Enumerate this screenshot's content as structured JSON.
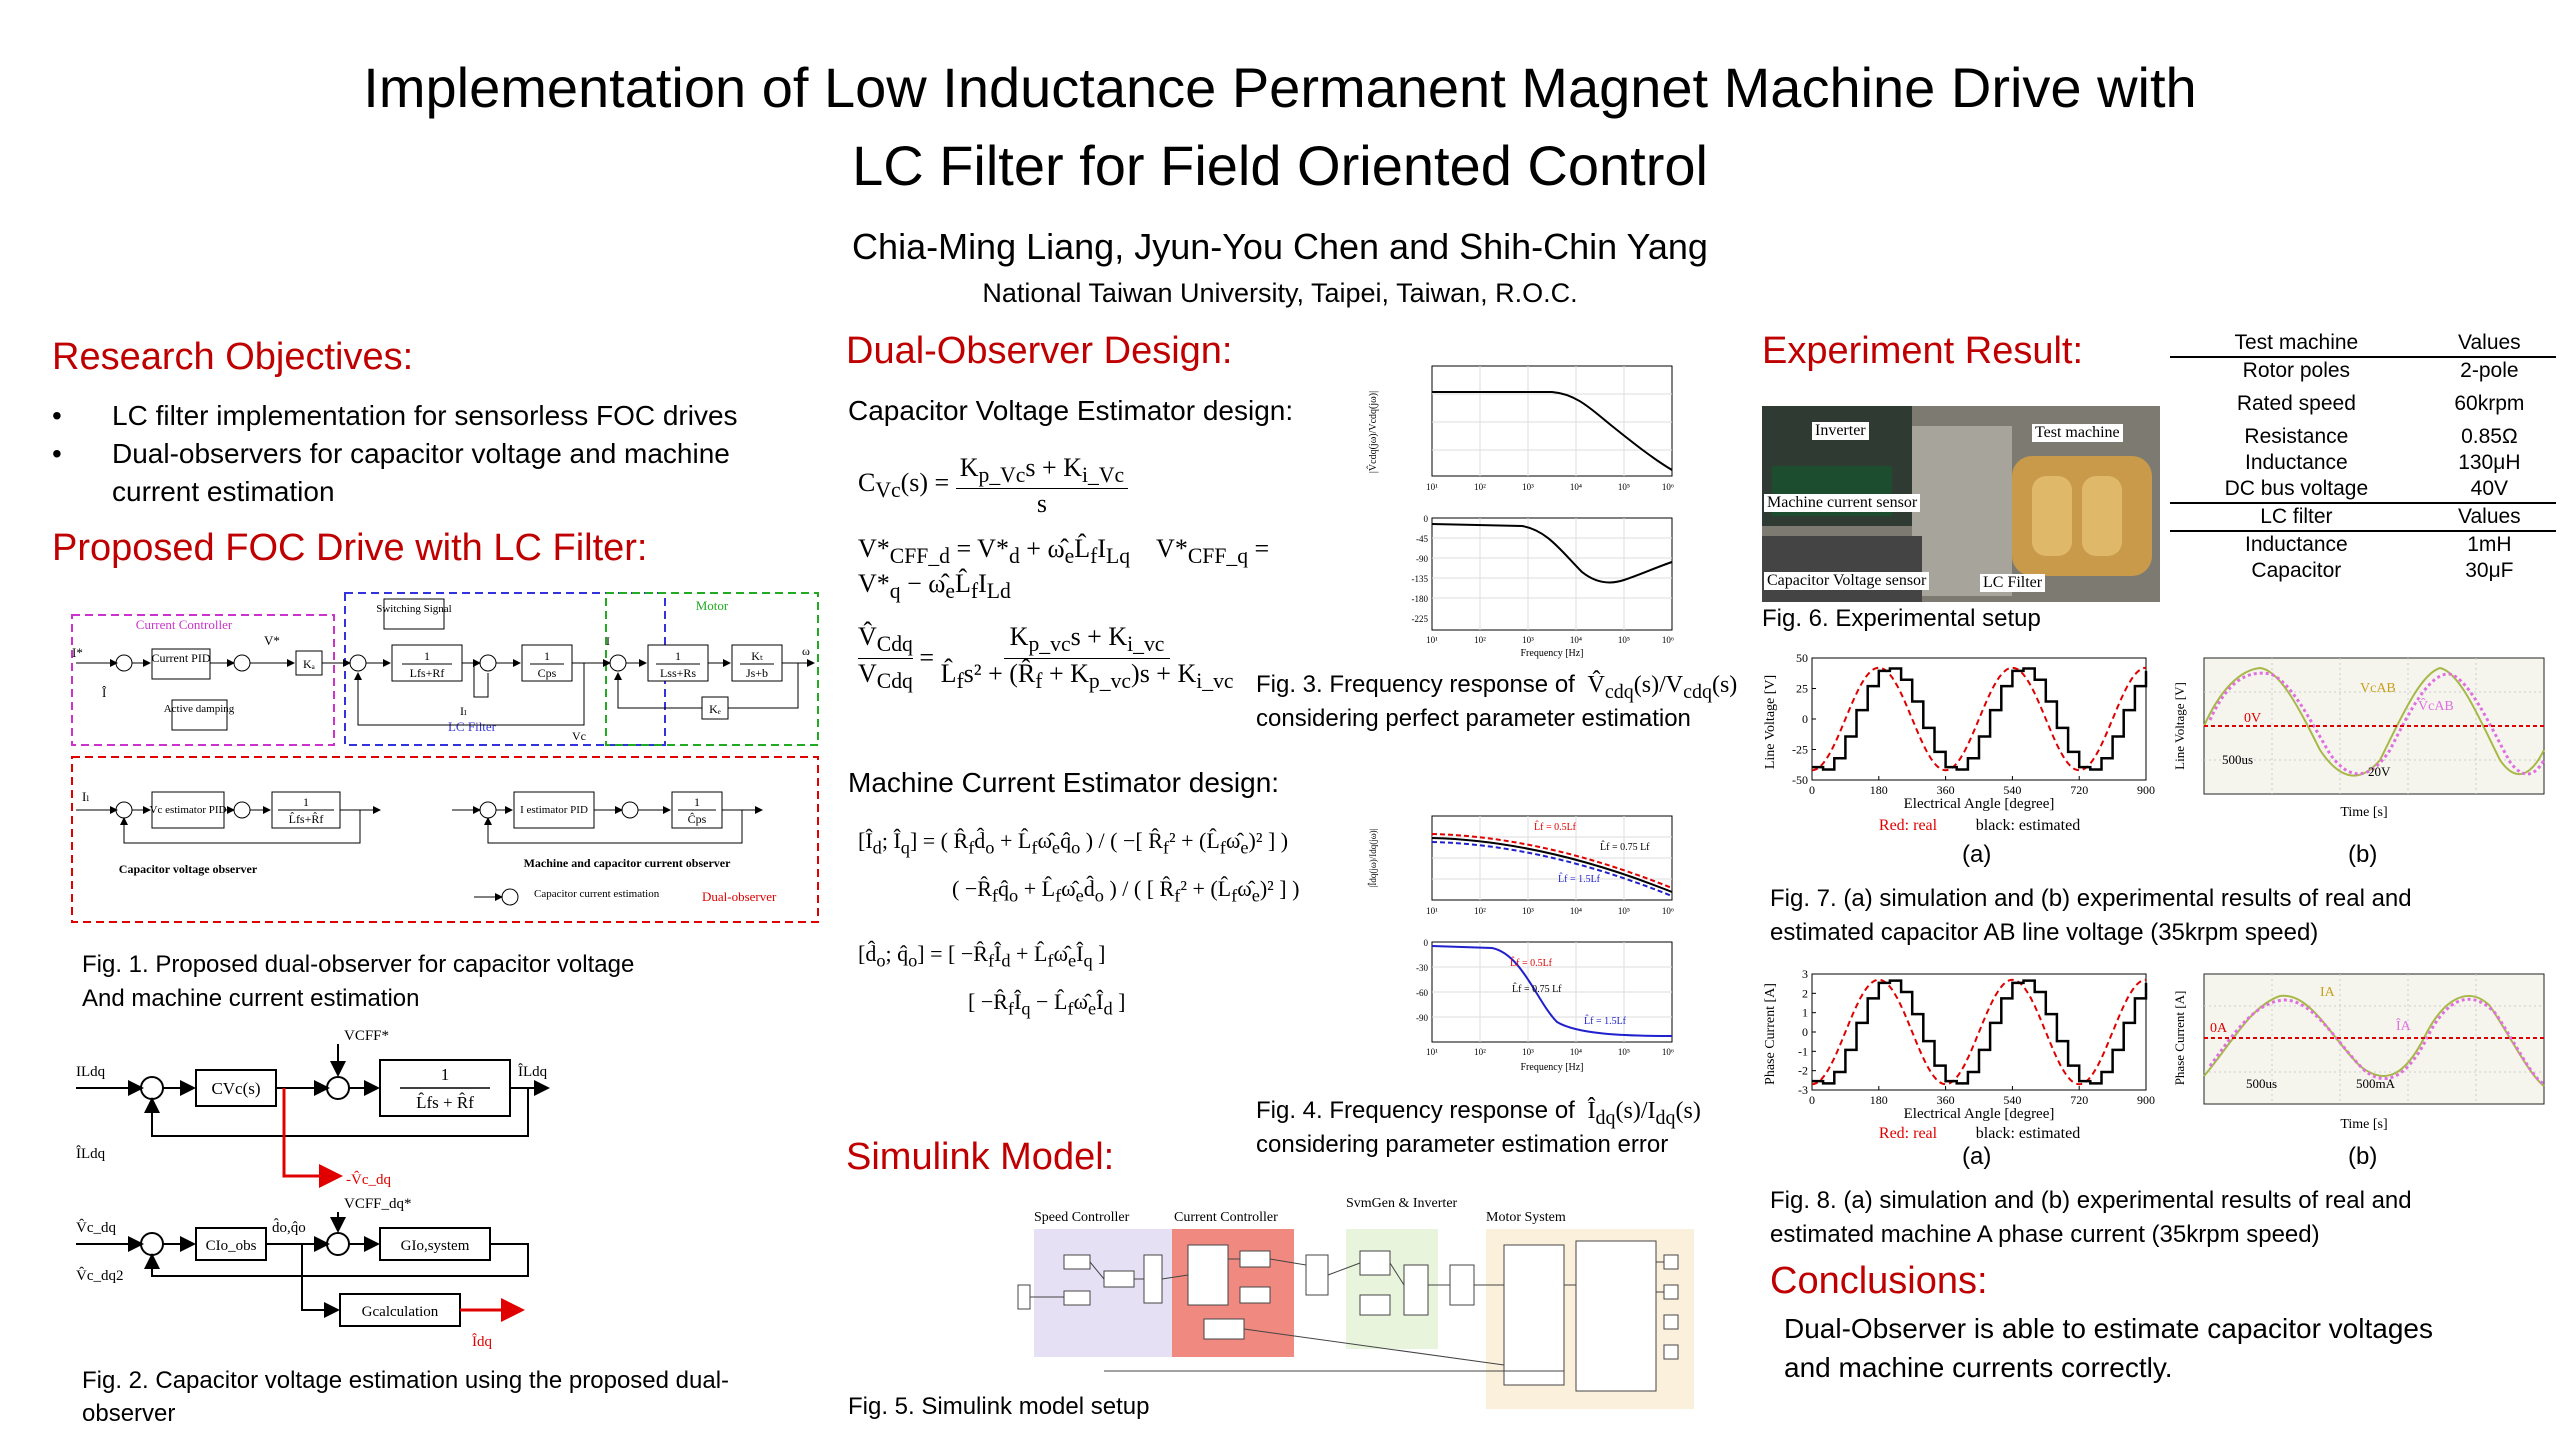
{
  "title": {
    "line1": "Implementation of Low Inductance Permanent Magnet Machine Drive with",
    "line2": "LC Filter for Field Oriented Control"
  },
  "authors": "Chia-Ming Liang, Jyun-You Chen and Shih-Chin Yang",
  "affiliation": "National Taiwan University, Taipei, Taiwan, R.O.C.",
  "research": {
    "heading": "Research Objectives:",
    "bullets": [
      "LC filter implementation for sensorless FOC drives",
      "Dual-observers for capacitor voltage and machine current estimation"
    ]
  },
  "foc": {
    "heading": "Proposed FOC Drive with LC Filter:",
    "fig1_caption_l1": "Fig. 1. Proposed dual-observer for capacitor voltage",
    "fig1_caption_l2": "And machine current estimation",
    "fig2_caption_l1": "Fig. 2. Capacitor voltage estimation using the proposed dual-",
    "fig2_caption_l2": "observer",
    "diagram": {
      "current_controller": "Current Controller",
      "lc_filter": "LC Filter",
      "motor": "Motor",
      "switching_signal": "Switching Signal",
      "current_pid": "Current PID",
      "active_damping": "Active damping",
      "cap_voltage_observer": "Capacitor voltage observer",
      "vc_estimator_pid": "Vc estimator PID",
      "i_estimator_pid": "I estimator PID",
      "machine_cap_observer": "Machine and capacitor current observer",
      "capacitor_current_estimation": "Capacitor current estimation",
      "dual_observer": "Dual-observer"
    }
  },
  "dual": {
    "heading": "Dual-Observer Design:",
    "cap_sub": "Capacitor Voltage Estimator design:",
    "mach_sub": "Machine Current Estimator design:",
    "fig3_l1": "Fig. 3. Frequency response of",
    "fig3_l2": "considering perfect parameter estimation",
    "fig4_l1": "Fig. 4. Frequency response of",
    "fig4_l2": "considering parameter estimation error",
    "freq_label": "Frequency [Hz]"
  },
  "simulink": {
    "heading": "Simulink Model:",
    "caption": "Fig. 5. Simulink model setup",
    "blocks": [
      "Speed Controller",
      "Current Controller",
      "SvmGen & Inverter",
      "Motor System"
    ]
  },
  "experiment": {
    "heading": "Experiment Result:",
    "fig6_caption": "Fig. 6. Experimental setup",
    "photo_labels": {
      "inverter": "Inverter",
      "test_machine": "Test machine",
      "machine_current_sensor": "Machine current sensor",
      "cap_voltage_sensor": "Capacitor Voltage sensor",
      "lc_filter": "LC Filter"
    },
    "fig7_l1": "Fig. 7. (a) simulation and (b) experimental results of real and",
    "fig7_l2": "estimated capacitor AB line voltage (35krpm speed)",
    "fig8_l1": "Fig. 8. (a) simulation and (b) experimental results of real and",
    "fig8_l2": "estimated machine A phase current (35krpm speed)",
    "red_real": "Red: real",
    "black_est": "black: estimated",
    "label_a": "(a)",
    "label_b": "(b)",
    "line_voltage_axis": "Line Voltage [V]",
    "phase_current_axis": "Phase Current [A]",
    "elec_angle_axis": "Electrical Angle [degree]",
    "time_axis": "Time [s]",
    "scope_v": {
      "zero": "0V",
      "t_div": "500us",
      "v_div": "20V"
    },
    "scope_i": {
      "zero": "0A",
      "t_div": "500us",
      "i_div": "500mA"
    }
  },
  "spec_table": {
    "header1": [
      "Test machine",
      "Values"
    ],
    "rows1": [
      [
        "Rotor poles",
        "2-pole"
      ],
      [
        "Rated speed",
        "60krpm"
      ],
      [
        "Resistance",
        "0.85Ω"
      ],
      [
        "Inductance",
        "130μH"
      ],
      [
        "DC bus voltage",
        "40V"
      ]
    ],
    "header2": [
      "LC filter",
      "Values"
    ],
    "rows2": [
      [
        "Inductance",
        "1mH"
      ],
      [
        "Capacitor",
        "30μF"
      ]
    ]
  },
  "conclusions": {
    "heading": "Conclusions:",
    "text_l1": "Dual-Observer is able to estimate capacitor voltages",
    "text_l2": "and machine currents correctly."
  },
  "colors": {
    "heading": "#c00000",
    "real": "#e00000",
    "estimated": "#000000"
  },
  "chart_data": [
    {
      "type": "line",
      "title": "",
      "xlabel": "Electrical Angle [degree]",
      "ylabel": "Line Voltage [V]",
      "xlim": [
        0,
        900
      ],
      "ylim": [
        -50,
        50
      ],
      "x_ticks": [
        0,
        180,
        360,
        540,
        720,
        900
      ],
      "y_ticks": [
        50,
        25,
        0,
        -25,
        -50
      ],
      "series": [
        {
          "name": "Red: real",
          "amplitude": 42,
          "phase_deg": 0
        },
        {
          "name": "black: estimated",
          "amplitude": 42,
          "phase_deg": 20
        }
      ]
    },
    {
      "type": "line",
      "title": "",
      "xlabel": "Electrical Angle [degree]",
      "ylabel": "Phase Current [A]",
      "xlim": [
        0,
        900
      ],
      "ylim": [
        -3,
        3
      ],
      "x_ticks": [
        0,
        180,
        360,
        540,
        720,
        900
      ],
      "y_ticks": [
        3,
        2,
        1,
        0,
        -1,
        -2,
        -3
      ],
      "series": [
        {
          "name": "Red: real",
          "amplitude": 2.7,
          "phase_deg": 0
        },
        {
          "name": "black: estimated",
          "amplitude": 2.7,
          "phase_deg": 20
        }
      ]
    }
  ]
}
